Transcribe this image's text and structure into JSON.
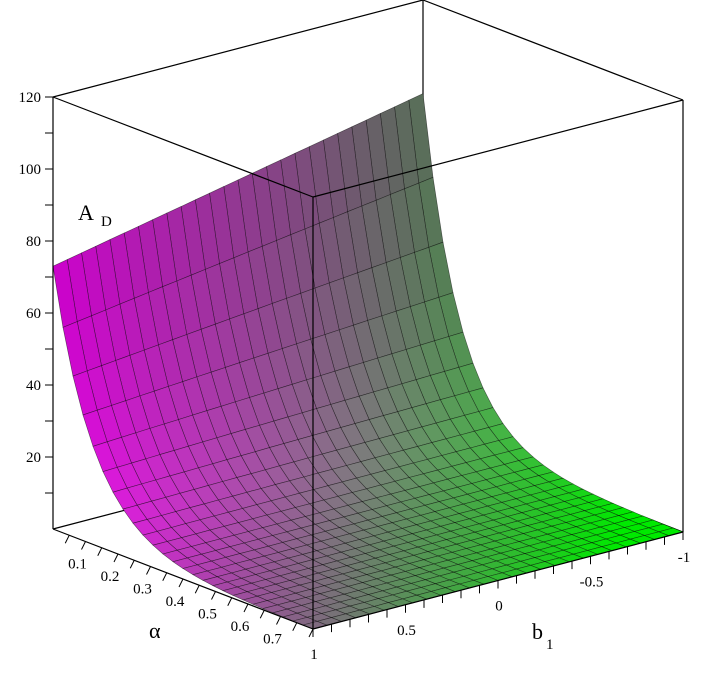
{
  "chart_data": {
    "type": "surface3d",
    "title": "",
    "zlabel": "A",
    "zlabel_sub": "D",
    "alpha_label": "α",
    "b1_label": "b",
    "b1_label_sub": "1",
    "z_ticks": [
      "20",
      "40",
      "60",
      "80",
      "100",
      "120"
    ],
    "z_tick_values": [
      20,
      40,
      60,
      80,
      100,
      120
    ],
    "alpha_ticks": [
      "0.1",
      "0.2",
      "0.3",
      "0.4",
      "0.5",
      "0.6",
      "0.7"
    ],
    "alpha_tick_values": [
      0.1,
      0.2,
      0.3,
      0.4,
      0.5,
      0.6,
      0.7
    ],
    "b1_ticks": [
      "1",
      "0.5",
      "0",
      "-0.5",
      "-1"
    ],
    "b1_tick_values": [
      1,
      0.5,
      0,
      -0.5,
      -1
    ],
    "alpha_range": [
      0,
      0.8
    ],
    "b1_range": [
      -1,
      1
    ],
    "zlim": [
      0,
      120
    ],
    "approx_corner_values": {
      "alpha_0_b1_-1": 94,
      "alpha_0_b1_1": 73,
      "alpha_0.8_b1_-1": 0,
      "alpha_0.8_b1_1": 0
    },
    "colormap": [
      "#ff00ff",
      "#00ff00"
    ],
    "box": true,
    "grid": false
  }
}
